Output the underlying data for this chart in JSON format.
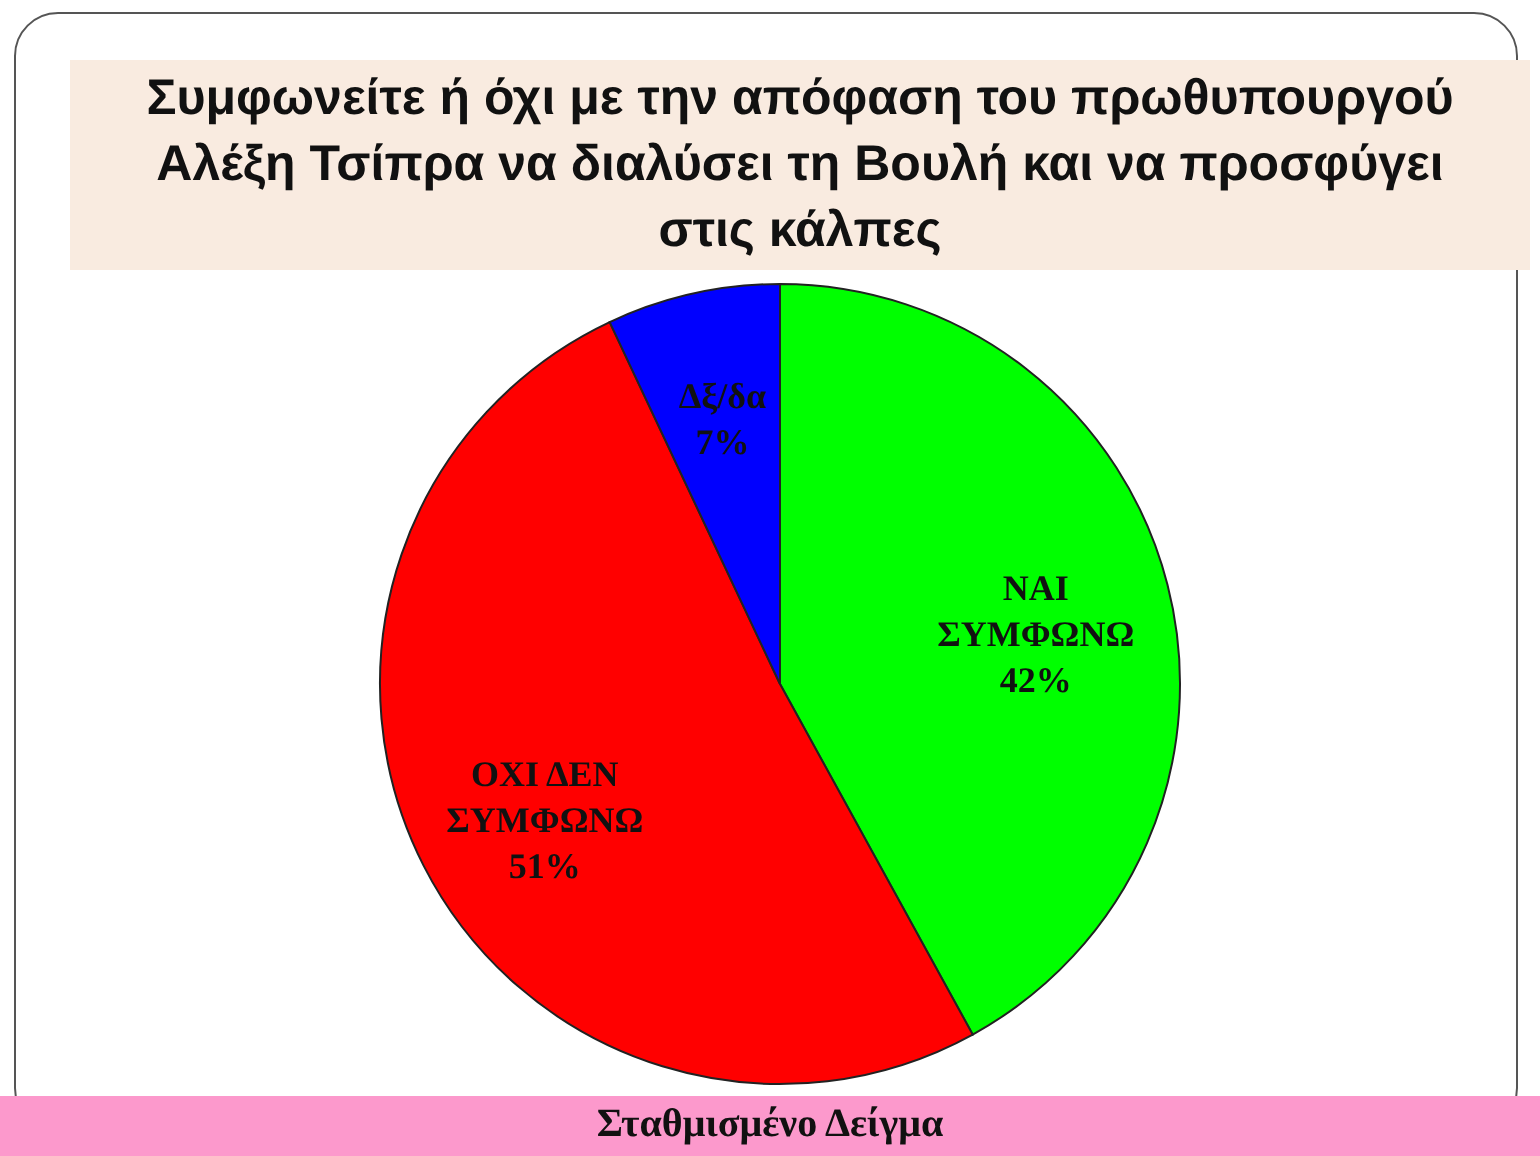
{
  "chart_data": {
    "type": "pie",
    "title": "Συμφωνείτε ή όχι με την απόφαση του πρωθυπουργού Αλέξη Τσίπρα να διαλύσει τη Βουλή και να προσφύγει στις κάλπες",
    "categories": [
      "ΝΑΙ ΣΥΜΦΩΝΩ",
      "ΟΧΙ ΔΕΝ ΣΥΜΦΩΝΩ",
      "Δξ/δα"
    ],
    "values": [
      42,
      51,
      7
    ],
    "value_labels": [
      "42%",
      "51%",
      "7%"
    ],
    "colors": [
      "#00ff00",
      "#ff0000",
      "#0000ff"
    ],
    "annotations": [
      "Σταθμισμένο Δείγμα"
    ]
  }
}
